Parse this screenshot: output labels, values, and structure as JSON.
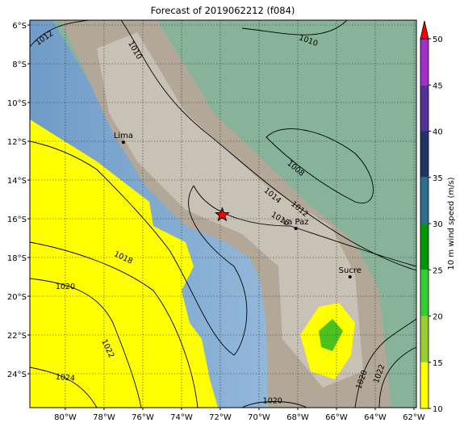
{
  "title": "Forecast of 2019062212 (f084)",
  "map": {
    "xlim": [
      -81.83,
      -61.875
    ],
    "ylim": [
      -25.75,
      -5.75
    ],
    "grid": true,
    "xticks": [
      {
        "value": -80,
        "label": "80°W"
      },
      {
        "value": -78,
        "label": "78°W"
      },
      {
        "value": -76,
        "label": "76°W"
      },
      {
        "value": -74,
        "label": "74°W"
      },
      {
        "value": -72,
        "label": "72°W"
      },
      {
        "value": -70,
        "label": "70°W"
      },
      {
        "value": -68,
        "label": "68°W"
      },
      {
        "value": -66,
        "label": "66°W"
      },
      {
        "value": -64,
        "label": "64°W"
      },
      {
        "value": -62,
        "label": "62°W"
      }
    ],
    "yticks": [
      {
        "value": -6,
        "label": "6°S"
      },
      {
        "value": -8,
        "label": "8°S"
      },
      {
        "value": -10,
        "label": "10°S"
      },
      {
        "value": -12,
        "label": "12°S"
      },
      {
        "value": -14,
        "label": "14°S"
      },
      {
        "value": -16,
        "label": "16°S"
      },
      {
        "value": -18,
        "label": "18°S"
      },
      {
        "value": -20,
        "label": "20°S"
      },
      {
        "value": -22,
        "label": "22°S"
      },
      {
        "value": -24,
        "label": "24°S"
      }
    ],
    "cities": [
      {
        "name": "Lima",
        "lon": -77.0,
        "lat": -12.05
      },
      {
        "name": "La Paz",
        "lon": -68.1,
        "lat": -16.5
      },
      {
        "name": "Sucre",
        "lon": -65.3,
        "lat": -19.0
      }
    ],
    "marker": {
      "lon": -71.9,
      "lat": -15.8
    },
    "contour_labels": [
      {
        "value": 1012,
        "lon": -81.08,
        "lat": -6.67
      },
      {
        "value": 1010,
        "lon": -76.4,
        "lat": -7.3
      },
      {
        "value": 1010,
        "lon": -67.45,
        "lat": -6.8
      },
      {
        "value": 1008,
        "lon": -68.1,
        "lat": -13.4
      },
      {
        "value": 1014,
        "lon": -69.3,
        "lat": -14.8
      },
      {
        "value": 1012,
        "lon": -67.9,
        "lat": -15.5
      },
      {
        "value": 1016,
        "lon": -68.9,
        "lat": -16.0
      },
      {
        "value": 1018,
        "lon": -77.0,
        "lat": -18.0
      },
      {
        "value": 1020,
        "lon": -80.0,
        "lat": -19.5
      },
      {
        "value": 1022,
        "lon": -77.8,
        "lat": -22.7
      },
      {
        "value": 1024,
        "lon": -80.0,
        "lat": -24.2
      },
      {
        "value": 1020,
        "lon": -64.7,
        "lat": -24.3
      },
      {
        "value": 1022,
        "lon": -63.8,
        "lat": -24.0
      },
      {
        "value": 1020,
        "lon": -69.3,
        "lat": -25.4
      }
    ]
  },
  "colorbar": {
    "label": "10 m wind speed (m/s)",
    "lim": [
      10,
      50
    ],
    "ticks": [
      10,
      15,
      20,
      25,
      30,
      35,
      40,
      45,
      50
    ],
    "colors": [
      "#ffff00",
      "#9acd32",
      "#32cd32",
      "#009900",
      "#2e6e8e",
      "#1f3566",
      "#55309a",
      "#a030c8"
    ],
    "over_color": "#ff0000"
  }
}
